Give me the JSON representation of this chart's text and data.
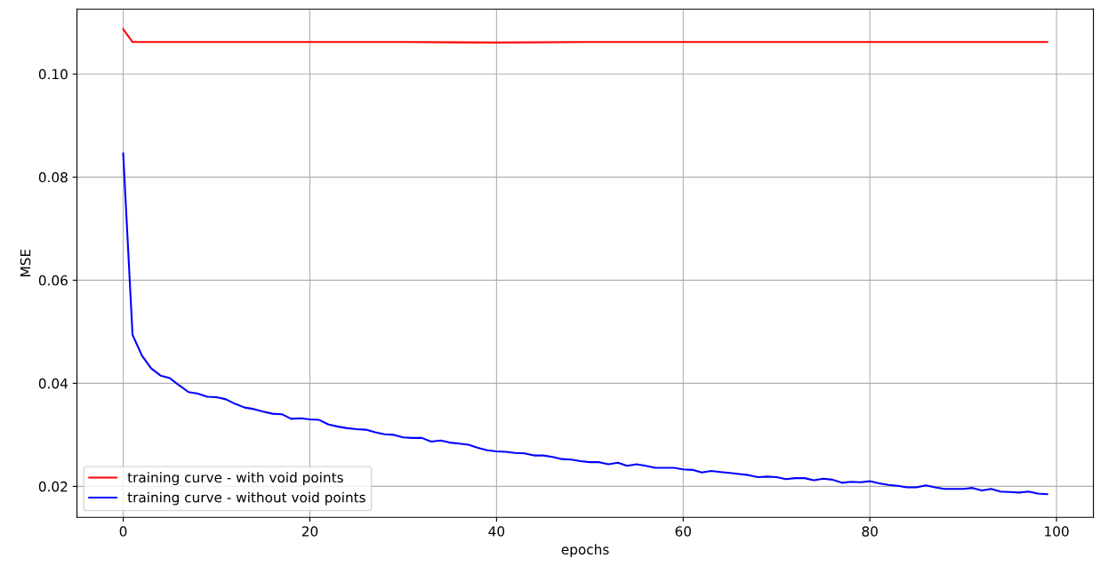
{
  "chart_data": {
    "type": "line",
    "xlabel": "epochs",
    "ylabel": "MSE",
    "xlim": [
      -4.95,
      103.95
    ],
    "ylim": [
      0.014,
      0.1126
    ],
    "xticks": [
      0,
      20,
      40,
      60,
      80,
      100
    ],
    "yticks": [
      {
        "value": 0.02,
        "label": "0.02"
      },
      {
        "value": 0.04,
        "label": "0.04"
      },
      {
        "value": 0.06,
        "label": "0.06"
      },
      {
        "value": 0.08,
        "label": "0.08"
      },
      {
        "value": 0.1,
        "label": "0.10"
      }
    ],
    "grid": true,
    "legend": "bottom left",
    "series": [
      {
        "name": "training curve - with void points",
        "color": "#ff0000",
        "x": [
          0,
          1,
          10,
          20,
          30,
          40,
          50,
          60,
          70,
          80,
          90,
          99
        ],
        "values": [
          0.1087,
          0.1062,
          0.1062,
          0.1062,
          0.1062,
          0.1061,
          0.1062,
          0.1062,
          0.1062,
          0.1062,
          0.1062,
          0.1062
        ]
      },
      {
        "name": "training curve - without void points",
        "color": "#0000ff",
        "x": [
          0,
          1,
          2,
          3,
          4,
          5,
          6,
          7,
          8,
          9,
          10,
          11,
          12,
          13,
          14,
          15,
          16,
          17,
          18,
          19,
          20,
          21,
          22,
          23,
          24,
          25,
          26,
          27,
          28,
          29,
          30,
          31,
          32,
          33,
          34,
          35,
          36,
          37,
          38,
          39,
          40,
          41,
          42,
          43,
          44,
          45,
          46,
          47,
          48,
          49,
          50,
          51,
          52,
          53,
          54,
          55,
          56,
          57,
          58,
          59,
          60,
          61,
          62,
          63,
          64,
          65,
          66,
          67,
          68,
          69,
          70,
          71,
          72,
          73,
          74,
          75,
          76,
          77,
          78,
          79,
          80,
          81,
          82,
          83,
          84,
          85,
          86,
          87,
          88,
          89,
          90,
          91,
          92,
          93,
          94,
          95,
          96,
          97,
          98,
          99
        ],
        "values": [
          0.0846,
          0.0494,
          0.0454,
          0.0429,
          0.0415,
          0.041,
          0.0396,
          0.0383,
          0.038,
          0.0374,
          0.0373,
          0.0369,
          0.036,
          0.0353,
          0.035,
          0.0345,
          0.0341,
          0.034,
          0.0331,
          0.0332,
          0.033,
          0.0329,
          0.032,
          0.0316,
          0.0313,
          0.0311,
          0.031,
          0.0305,
          0.0301,
          0.03,
          0.0295,
          0.0294,
          0.0294,
          0.0287,
          0.0289,
          0.0285,
          0.0283,
          0.0281,
          0.0275,
          0.027,
          0.0268,
          0.0267,
          0.0265,
          0.0264,
          0.026,
          0.026,
          0.0257,
          0.0253,
          0.0252,
          0.0249,
          0.0247,
          0.0247,
          0.0243,
          0.0246,
          0.024,
          0.0243,
          0.024,
          0.0236,
          0.0236,
          0.0236,
          0.0233,
          0.0232,
          0.0227,
          0.023,
          0.0228,
          0.0226,
          0.0224,
          0.0222,
          0.0218,
          0.0219,
          0.0218,
          0.0214,
          0.0216,
          0.0216,
          0.0212,
          0.0215,
          0.0213,
          0.0207,
          0.0209,
          0.0208,
          0.021,
          0.0206,
          0.0203,
          0.0201,
          0.0198,
          0.0198,
          0.0202,
          0.0198,
          0.0195,
          0.0195,
          0.0195,
          0.0197,
          0.0192,
          0.0195,
          0.019,
          0.0189,
          0.0188,
          0.019,
          0.0186,
          0.0185
        ]
      }
    ]
  }
}
